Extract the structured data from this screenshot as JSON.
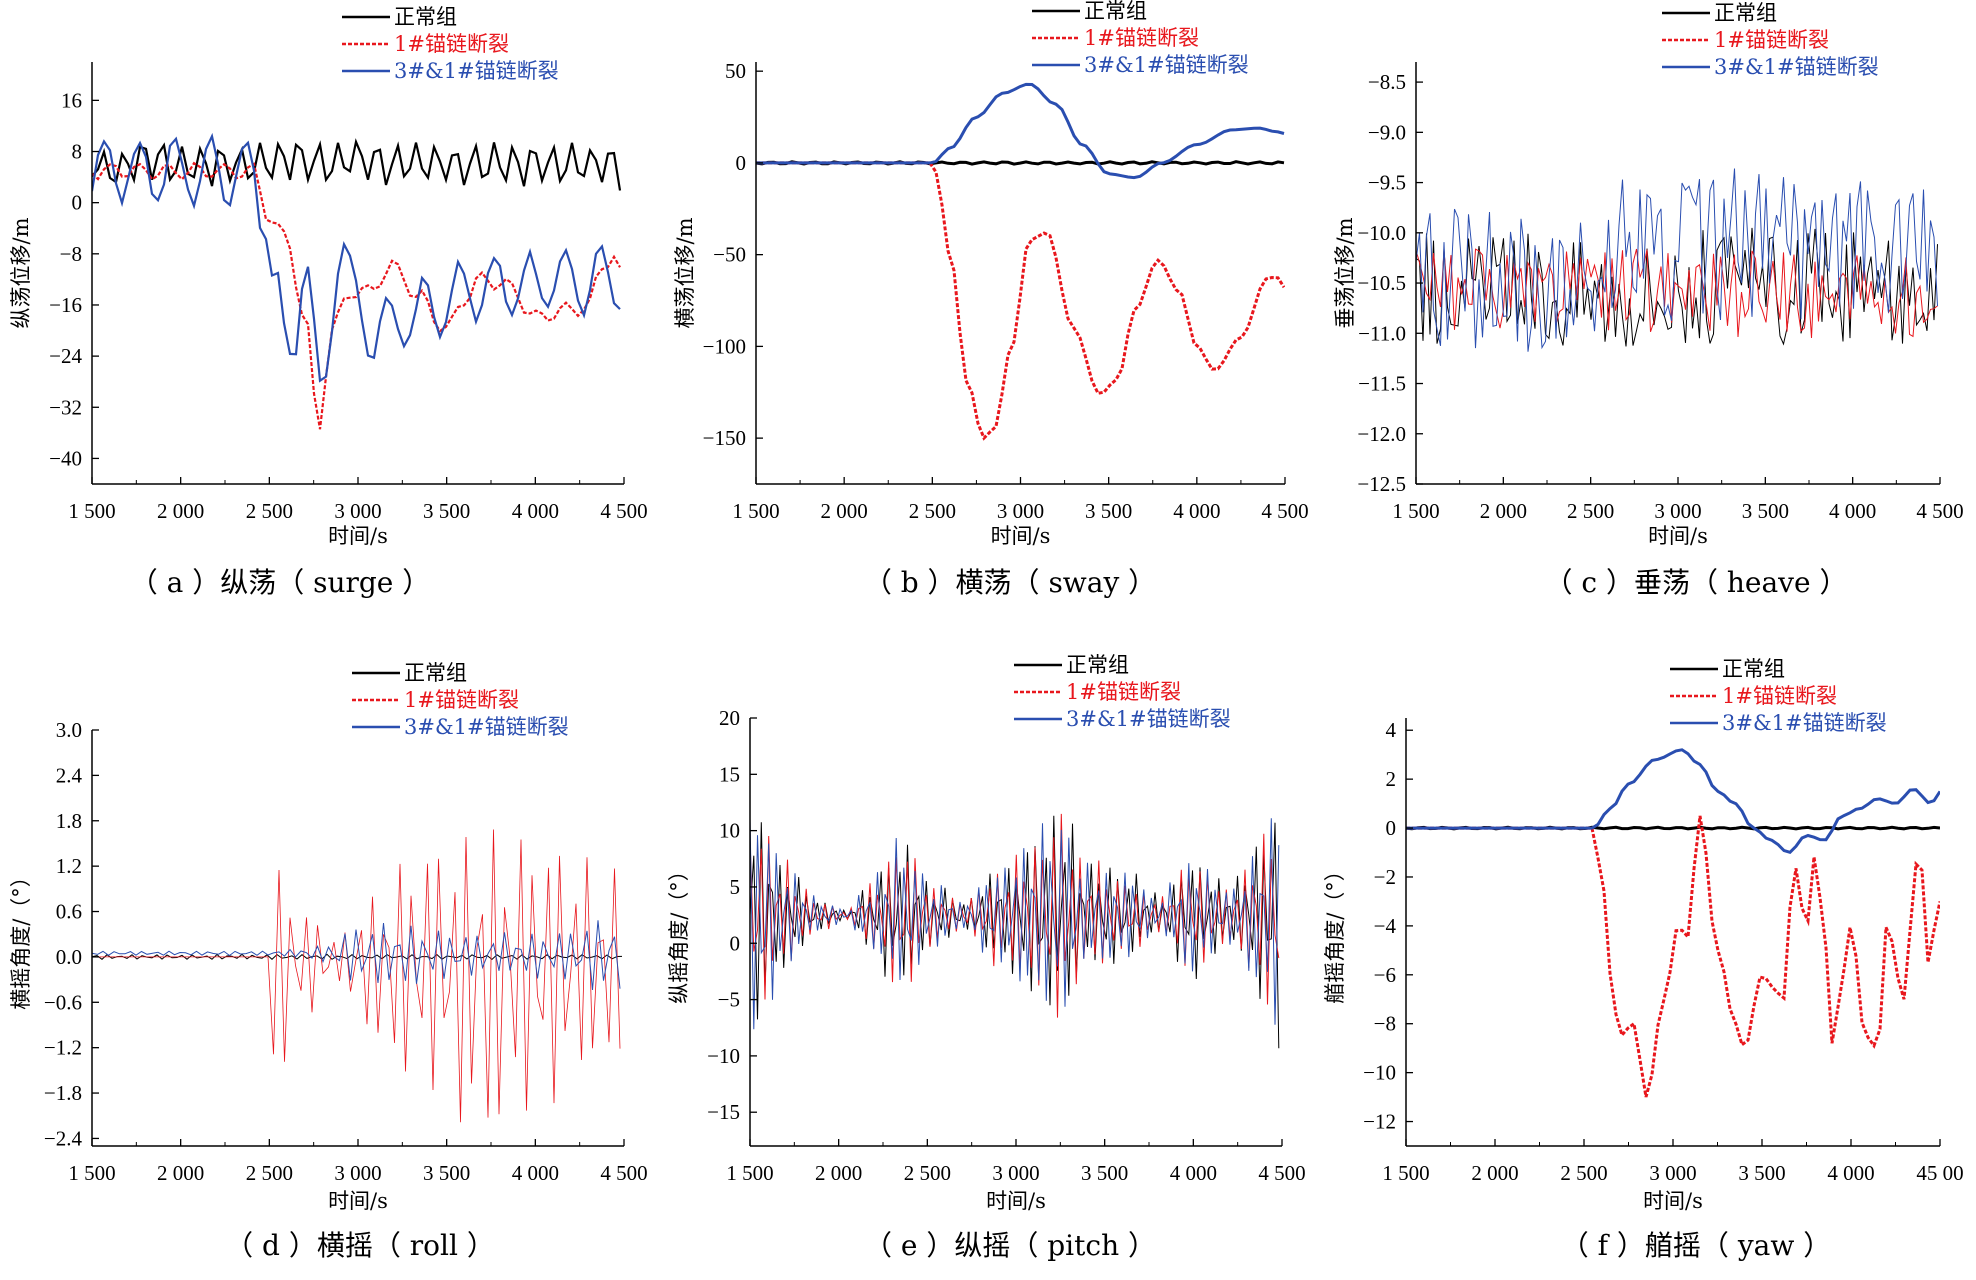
{
  "legend_entries": [
    "正常组",
    "1#锚链断裂",
    "3#&1#锚链断裂"
  ],
  "series_colors": {
    "正常组": "#000000",
    "1#锚链断裂": "#e8171d",
    "3#&1#锚链断裂": "#2a4eb0"
  },
  "chart_data": [
    {
      "type": "line",
      "caption": "（ a ）纵荡（ surge ）",
      "xlabel": "时间/s",
      "ylabel": "纵荡位移/m",
      "xlim": [
        1500,
        4500
      ],
      "ylim": [
        -44,
        22
      ],
      "xticks": [
        1500,
        2000,
        2500,
        3000,
        3500,
        4000,
        4500
      ],
      "xtick_labels": [
        "1 500",
        "2 000",
        "2 500",
        "3 000",
        "3 500",
        "4 000",
        "4 500"
      ],
      "yticks": [
        16,
        8,
        0,
        -8,
        -16,
        -24,
        -32,
        -40
      ],
      "ytick_labels": [
        "16",
        "8",
        "0",
        "−8",
        "−16",
        "−24",
        "−32",
        "−40"
      ],
      "legend": "top",
      "series": [
        {
          "name": "正常组",
          "x": [
            1500,
            1620,
            1800,
            2000,
            2250,
            2400,
            2600,
            2800,
            3000,
            3200,
            3400,
            3600,
            3800,
            4000,
            4200,
            4400,
            4500
          ],
          "y": [
            6,
            5,
            7,
            6,
            6,
            6,
            7,
            6,
            7,
            6,
            6,
            6,
            6,
            6,
            6,
            6,
            5
          ],
          "osc_amp": 3,
          "osc_period": 110
        },
        {
          "name": "1#锚链断裂",
          "x": [
            1500,
            2400,
            2500,
            2540,
            2600,
            2700,
            2780,
            2850,
            2950,
            3050,
            3200,
            3350,
            3500,
            3600,
            3700,
            3850,
            4000,
            4150,
            4300,
            4380,
            4430,
            4500
          ],
          "y": [
            5,
            5,
            -2,
            -4,
            -6,
            -18,
            -35,
            -20,
            -14,
            -14,
            -10,
            -15,
            -20,
            -15,
            -12,
            -13,
            -18,
            -17,
            -16,
            -10,
            -8,
            -12
          ],
          "osc_amp": 1.2,
          "osc_period": 160
        },
        {
          "name": "3#&1#锚链断裂",
          "x": [
            1500,
            2400,
            2480,
            2540,
            2600,
            2650,
            2700,
            2750,
            2800,
            2850,
            2900,
            2980,
            3100,
            3300,
            3500,
            3700,
            3900,
            4100,
            4300,
            4500
          ],
          "y": [
            5,
            5,
            -2,
            -15,
            -25,
            -20,
            -5,
            -22,
            -34,
            -15,
            -6,
            -16,
            -20,
            -18,
            -15,
            -13,
            -13,
            -12,
            -12,
            -12
          ],
          "osc_amp": 5,
          "osc_period": 200
        }
      ]
    },
    {
      "type": "line",
      "caption": "（ b ）横荡（ sway ）",
      "xlabel": "时间/s",
      "ylabel": "横荡位移/m",
      "xlim": [
        1500,
        4500
      ],
      "ylim": [
        -175,
        55
      ],
      "xticks": [
        1500,
        2000,
        2500,
        3000,
        3500,
        4000,
        4500
      ],
      "xtick_labels": [
        "1 500",
        "2 000",
        "2 500",
        "3 000",
        "3 500",
        "4 000",
        "4 500"
      ],
      "yticks": [
        50,
        0,
        -50,
        -100,
        -150
      ],
      "ytick_labels": [
        "50",
        "0",
        "−50",
        "−100",
        "−150"
      ],
      "legend": "top-right",
      "series": [
        {
          "name": "正常组",
          "x": [
            1500,
            4500
          ],
          "y": [
            0,
            0
          ],
          "osc_amp": 0.6,
          "osc_period": 120
        },
        {
          "name": "1#锚链断裂",
          "x": [
            1500,
            2500,
            2520,
            2600,
            2700,
            2790,
            2850,
            2950,
            3050,
            3150,
            3300,
            3450,
            3550,
            3650,
            3780,
            3900,
            4000,
            4100,
            4250,
            4400,
            4450,
            4500
          ],
          "y": [
            0,
            0,
            -5,
            -50,
            -120,
            -150,
            -145,
            -100,
            -42,
            -38,
            -90,
            -126,
            -118,
            -80,
            -53,
            -70,
            -100,
            -113,
            -95,
            -63,
            -62,
            -68
          ],
          "osc_amp": 0,
          "osc_period": 100
        },
        {
          "name": "3#&1#锚链断裂",
          "x": [
            1500,
            2500,
            2600,
            2750,
            2900,
            3050,
            3200,
            3350,
            3500,
            3650,
            3800,
            4000,
            4200,
            4350,
            4450,
            4500
          ],
          "y": [
            0,
            0,
            8,
            25,
            38,
            43,
            32,
            10,
            -6,
            -8,
            0,
            10,
            18,
            19,
            17,
            16
          ],
          "osc_amp": 0,
          "osc_period": 100
        }
      ]
    },
    {
      "type": "line",
      "caption": "（ c ）垂荡（ heave ）",
      "xlabel": "时间/s",
      "ylabel": "垂荡位移/m",
      "xlim": [
        1500,
        4500
      ],
      "ylim": [
        -12.5,
        -8.3
      ],
      "xticks": [
        1500,
        2000,
        2500,
        3000,
        3500,
        4000,
        4500
      ],
      "xtick_labels": [
        "1 500",
        "2 000",
        "2 500",
        "3 000",
        "3 500",
        "4 000",
        "4 500"
      ],
      "yticks": [
        -8.5,
        -9.0,
        -9.5,
        -10.0,
        -10.5,
        -11.0,
        -11.5,
        -12.0,
        -12.5
      ],
      "ytick_labels": [
        "−8.5",
        "−9.0",
        "−9.5",
        "−10.0",
        "−10.5",
        "−11.0",
        "−11.5",
        "−12.0",
        "−12.5"
      ],
      "legend": "top-right",
      "series": [
        {
          "name": "正常组",
          "x": [
            1500,
            4500
          ],
          "y": [
            -10.55,
            -10.55
          ],
          "osc_amp": 0.6,
          "osc_period": 14
        },
        {
          "name": "1#锚链断裂",
          "x": [
            1500,
            4500
          ],
          "y": [
            -10.6,
            -10.6
          ],
          "osc_amp": 0.45,
          "osc_period": 14
        },
        {
          "name": "3#&1#锚链断裂",
          "x": [
            1500,
            2500,
            2600,
            3500,
            4500
          ],
          "y": [
            -10.45,
            -10.45,
            -10.2,
            -10.1,
            -10.2
          ],
          "osc_amp": 0.75,
          "osc_period": 14
        }
      ]
    },
    {
      "type": "line",
      "caption": "（ d ）横摇（ roll ）",
      "xlabel": "时间/s",
      "ylabel": "横摇角度/（°）",
      "xlim": [
        1500,
        4500
      ],
      "ylim": [
        -2.5,
        3.0
      ],
      "xticks": [
        1500,
        2000,
        2500,
        3000,
        3500,
        4000,
        4500
      ],
      "xtick_labels": [
        "1 500",
        "2 000",
        "2 500",
        "3 000",
        "3 500",
        "4 000",
        "4 500"
      ],
      "yticks": [
        3.0,
        2.4,
        1.8,
        1.2,
        0.6,
        0.0,
        -0.6,
        -1.2,
        -1.8,
        -2.4
      ],
      "ytick_labels": [
        "3.0",
        "2.4",
        "1.8",
        "1.2",
        "0.6",
        "0.0",
        "−0.6",
        "−1.2",
        "−1.8",
        "−2.4"
      ],
      "legend": "top",
      "series": [
        {
          "name": "正常组",
          "x": [
            1500,
            4500
          ],
          "y": [
            0,
            0
          ],
          "osc_amp": 0.03,
          "osc_period": 20
        },
        {
          "name": "1#锚链断裂",
          "x": [
            1500,
            2500,
            2520,
            2700,
            2900,
            3000,
            3300,
            3500,
            3700,
            3900,
            4100,
            4300,
            4500
          ],
          "y": [
            0,
            0,
            1.7,
            0.8,
            0.3,
            1.0,
            1.6,
            1.9,
            2.5,
            2.0,
            1.8,
            1.5,
            1.3
          ],
          "osc_amp": 1,
          "osc_period": 22,
          "amp_envelope": true
        },
        {
          "name": "3#&1#锚链断裂",
          "x": [
            1500,
            2400,
            2600,
            2800,
            3000,
            3200,
            3500,
            3800,
            4100,
            4500
          ],
          "y": [
            0.03,
            0.03,
            0.05,
            0.12,
            0.45,
            0.5,
            0.35,
            0.3,
            0.35,
            0.6
          ],
          "osc_amp": 1,
          "osc_period": 22,
          "amp_envelope": true
        }
      ]
    },
    {
      "type": "line",
      "caption": "（ e ）纵摇（ pitch ）",
      "xlabel": "时间/s",
      "ylabel": "纵摇角度/（°）",
      "xlim": [
        1500,
        4500
      ],
      "ylim": [
        -18,
        20
      ],
      "xticks": [
        1500,
        2000,
        2500,
        3000,
        3500,
        4000,
        4500
      ],
      "xtick_labels": [
        "1 500",
        "2 000",
        "2 500",
        "3 000",
        "3 500",
        "4 000",
        "4 500"
      ],
      "yticks": [
        20,
        15,
        10,
        5,
        0,
        -5,
        -10,
        -15
      ],
      "ytick_labels": [
        "20",
        "15",
        "10",
        "5",
        "0",
        "−5",
        "−10",
        "−15"
      ],
      "legend": "top-right",
      "series": [
        {
          "name": "正常组",
          "x": [
            1500,
            1550,
            1700,
            1900,
            2050,
            2150,
            2350,
            2550,
            2700,
            2900,
            3100,
            3250,
            3400,
            3600,
            3800,
            4000,
            4200,
            4400,
            4500
          ],
          "y": [
            11,
            11,
            5,
            1.5,
            0.5,
            3,
            7.5,
            3,
            1.5,
            5,
            8,
            11,
            5,
            5,
            2,
            6,
            3,
            8,
            13
          ],
          "osc_amp": 1,
          "osc_period": 15,
          "amp_envelope": true,
          "center": 2.5
        },
        {
          "name": "1#锚链断裂",
          "x": [
            1500,
            1550,
            1700,
            1900,
            2050,
            2150,
            2350,
            2550,
            2700,
            2900,
            3100,
            3250,
            3400,
            3600,
            3800,
            4000,
            4200,
            4400,
            4500
          ],
          "y": [
            10,
            10,
            5,
            1.5,
            0.5,
            3,
            7,
            3,
            1.5,
            5,
            8,
            11,
            6,
            4,
            2,
            6,
            3,
            8,
            12
          ],
          "osc_amp": 1,
          "osc_period": 15,
          "amp_envelope": true,
          "center": 2.5
        },
        {
          "name": "3#&1#锚链断裂",
          "x": [
            1500,
            1550,
            1700,
            1900,
            2050,
            2150,
            2350,
            2550,
            2700,
            2900,
            3100,
            3250,
            3400,
            3600,
            3800,
            4000,
            4200,
            4400,
            4500
          ],
          "y": [
            12,
            12,
            5,
            1.5,
            0.5,
            3,
            7.5,
            3,
            1.5,
            5,
            8,
            11,
            5,
            5,
            2,
            6,
            3,
            8,
            13
          ],
          "osc_amp": 1,
          "osc_period": 15,
          "amp_envelope": true,
          "center": 2.5
        }
      ]
    },
    {
      "type": "line",
      "caption": "（ f ）艏摇（ yaw ）",
      "xlabel": "时间/s",
      "ylabel": "艏摇角度/（°）",
      "xlim": [
        1500,
        4500
      ],
      "ylim": [
        -13,
        4.5
      ],
      "xticks": [
        1500,
        2000,
        2500,
        3000,
        3500,
        4000,
        4500
      ],
      "xtick_labels": [
        "1 500",
        "2 000",
        "2 500",
        "3 000",
        "3 500",
        "4 000",
        "45 00"
      ],
      "yticks": [
        4,
        2,
        0,
        -2,
        -4,
        -6,
        -8,
        -10,
        -12
      ],
      "ytick_labels": [
        "4",
        "2",
        "0",
        "−2",
        "−4",
        "−6",
        "−8",
        "−10",
        "−12"
      ],
      "legend": "top-right",
      "series": [
        {
          "name": "正常组",
          "x": [
            1500,
            4500
          ],
          "y": [
            0,
            0
          ],
          "osc_amp": 0.03,
          "osc_period": 120
        },
        {
          "name": "1#锚链断裂",
          "x": [
            1500,
            2550,
            2600,
            2650,
            2700,
            2780,
            2850,
            2950,
            3030,
            3080,
            3150,
            3250,
            3350,
            3400,
            3500,
            3560,
            3620,
            3680,
            3750,
            3800,
            3850,
            3900,
            3950,
            4000,
            4080,
            4150,
            4200,
            4300,
            4350,
            4380,
            4430,
            4500
          ],
          "y": [
            0,
            0,
            -2,
            -6,
            -8.5,
            -8,
            -11,
            -7,
            -4,
            -4.5,
            0.5,
            -5,
            -8,
            -9,
            -6,
            -6.5,
            -7,
            -1.5,
            -4,
            -1,
            -4.5,
            -9,
            -6,
            -4,
            -8.5,
            -9,
            -4,
            -7,
            -3,
            0,
            -5.5,
            -3
          ],
          "osc_amp": 0,
          "osc_period": 100
        },
        {
          "name": "3#&1#锚链断裂",
          "x": [
            1500,
            2550,
            2650,
            2750,
            2900,
            3050,
            3150,
            3250,
            3350,
            3450,
            3550,
            3650,
            3750,
            3850,
            3950,
            4050,
            4150,
            4250,
            4350,
            4450,
            4500
          ],
          "y": [
            0,
            0,
            0.8,
            1.8,
            2.8,
            3.2,
            2.6,
            1.5,
            1.0,
            0,
            -0.5,
            -1,
            -0.3,
            -0.5,
            0.5,
            0.8,
            1.2,
            1,
            1.6,
            1,
            1.5
          ],
          "osc_amp": 0,
          "osc_period": 100
        }
      ]
    }
  ]
}
